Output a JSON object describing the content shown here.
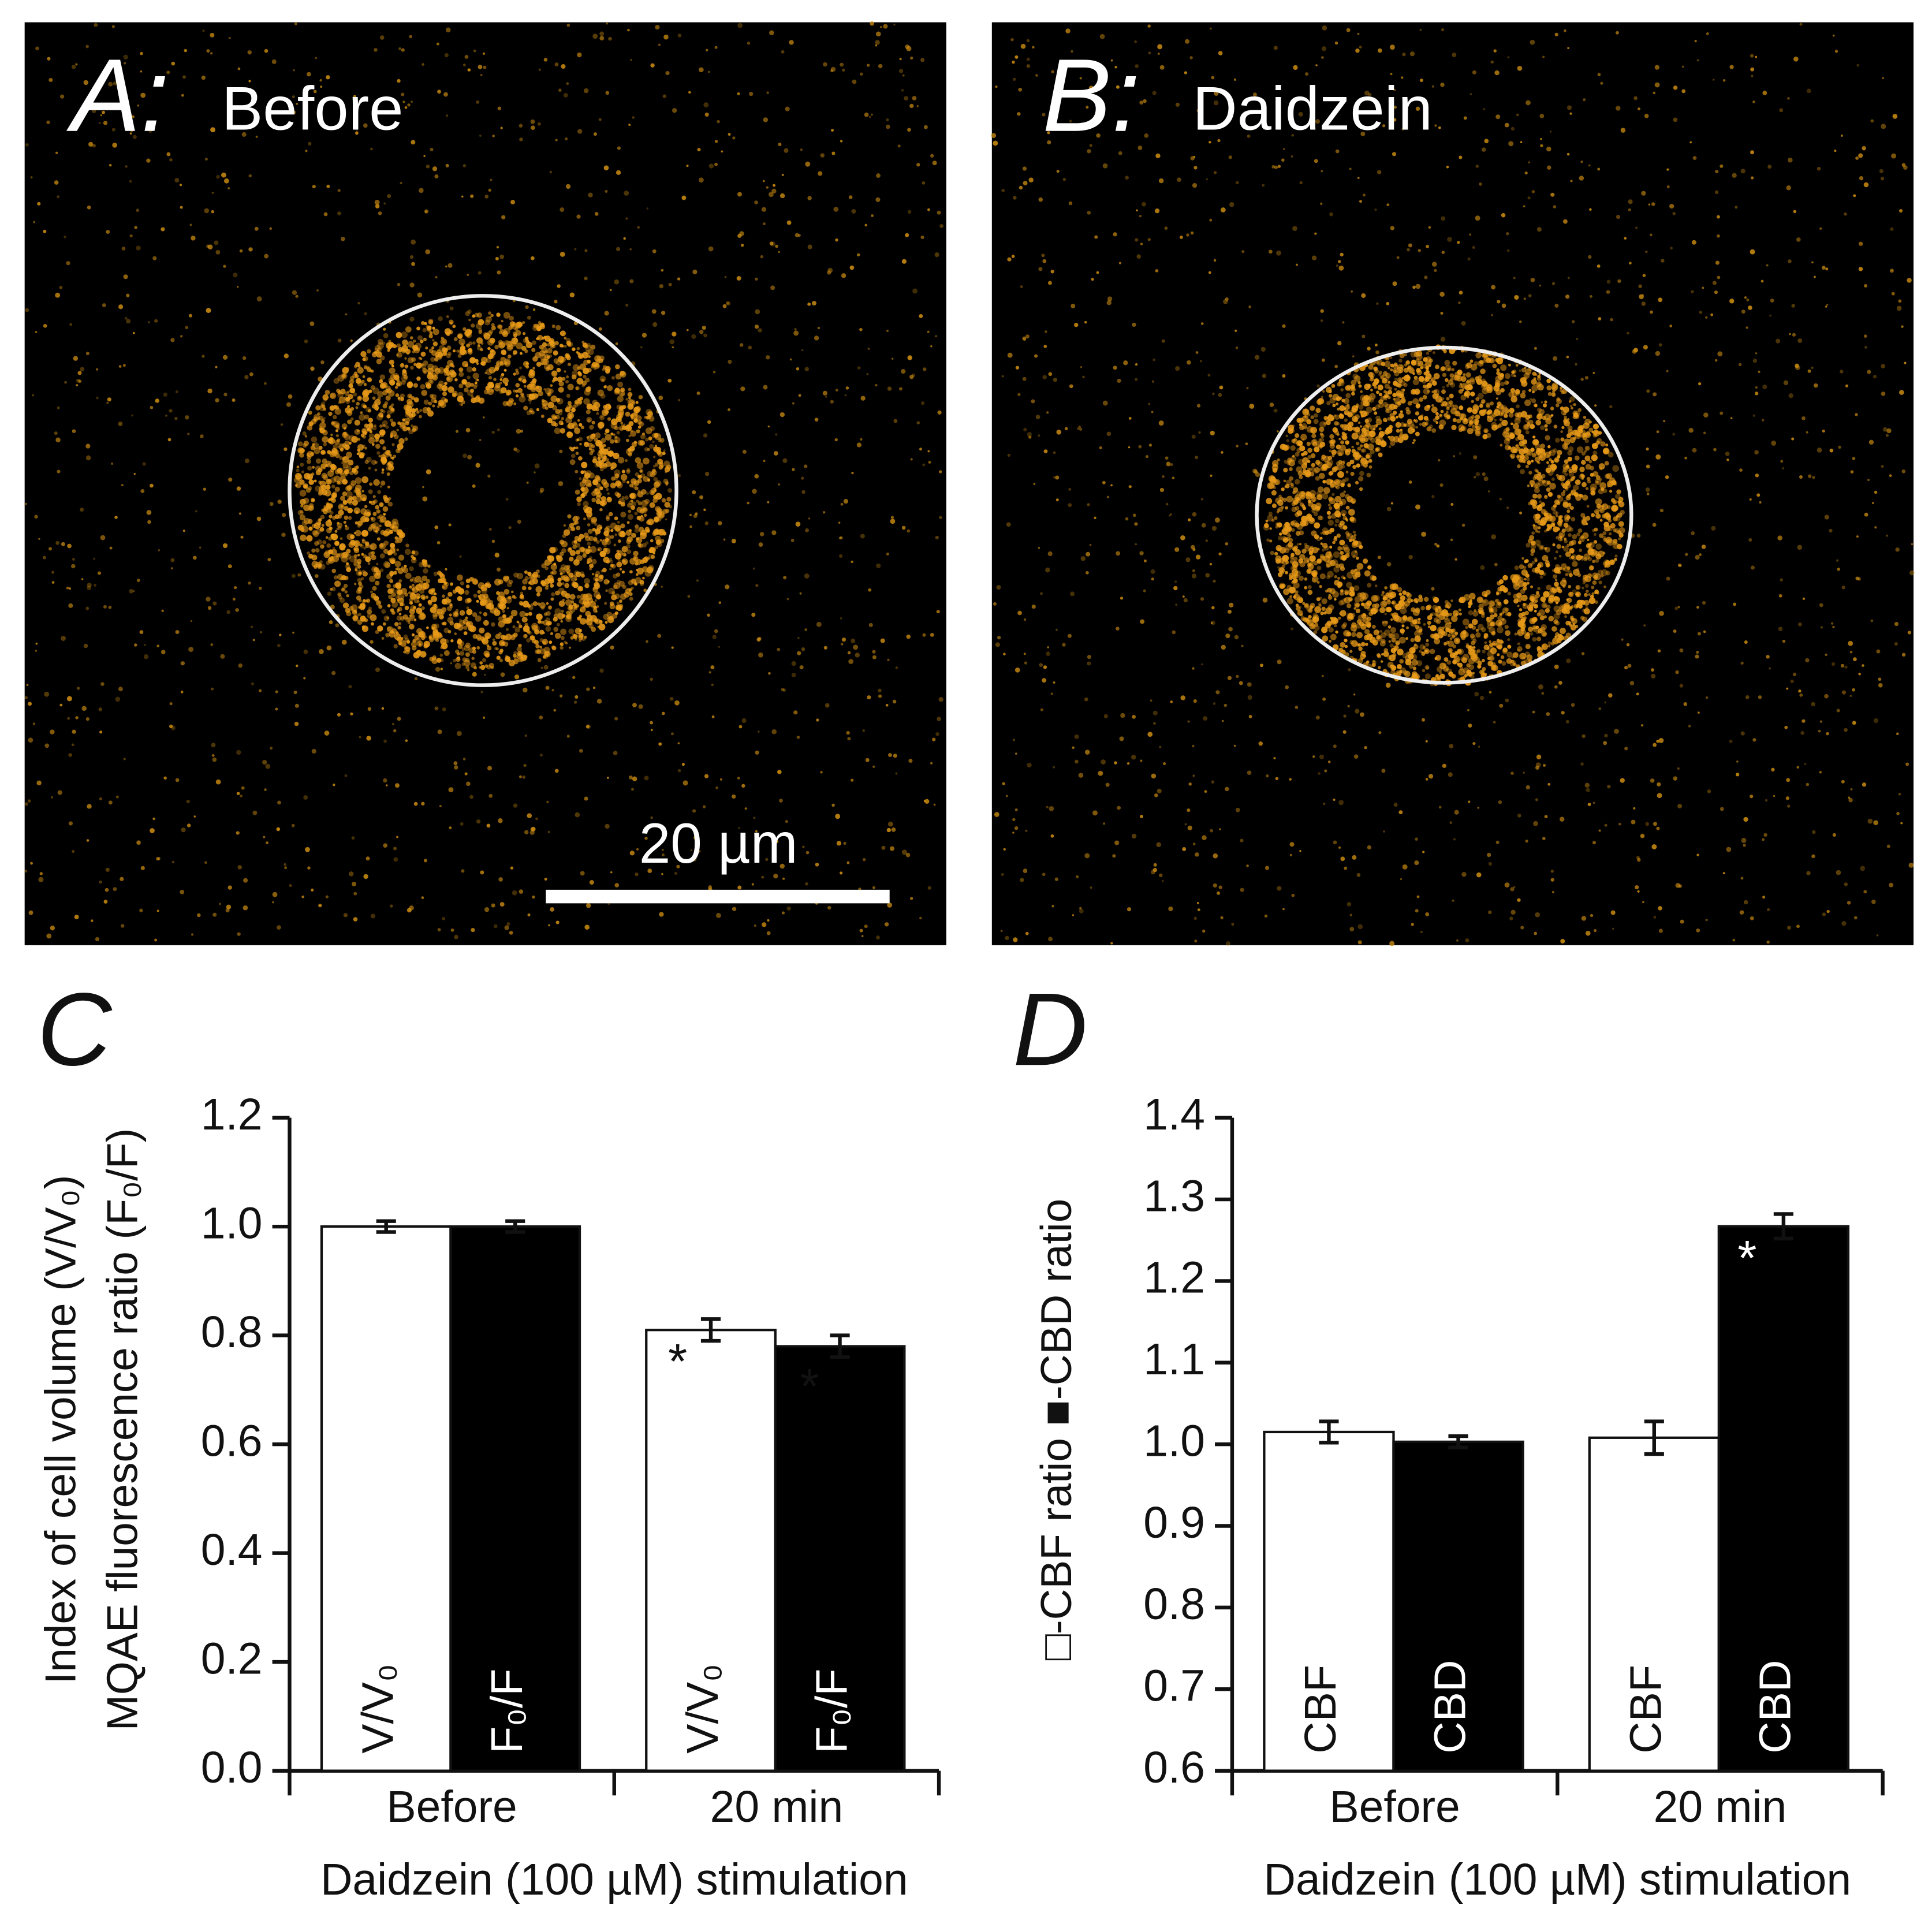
{
  "panels": [
    {
      "label": "A:",
      "title": "Before",
      "scale_bar": "20 µm"
    },
    {
      "label": "B:",
      "title": "Daidzein"
    }
  ],
  "chart_data": [
    {
      "type": "bar",
      "panel": "C",
      "y_label": [
        "Index of cell volume (V/V₀)",
        "MQAE fluorescence ratio (F₀/F)"
      ],
      "x_label": "Daidzein (100 µM)  stimulation",
      "categories": [
        "Before",
        "20 min"
      ],
      "series": [
        {
          "name": "V/V₀",
          "color": "#ffffff",
          "values": [
            1.0,
            0.81
          ],
          "errors": [
            0.01,
            0.02
          ]
        },
        {
          "name": "F₀/F",
          "color": "#000000",
          "values": [
            1.0,
            0.78
          ],
          "errors": [
            0.01,
            0.02
          ]
        }
      ],
      "annotations": [
        "*",
        "*"
      ],
      "ylim": [
        0,
        1.2
      ],
      "yticks": [
        {
          "value": 0,
          "label": "0.0"
        },
        0.2,
        0.4,
        0.6,
        0.8,
        {
          "value": 1,
          "label": "1.0"
        },
        1.2
      ]
    },
    {
      "type": "bar",
      "panel": "D",
      "y_label": "□-CBF ratio ■-CBD ratio",
      "x_label": "Daidzein (100 µM) stimulation",
      "categories": [
        "Before",
        "20 min"
      ],
      "series": [
        {
          "name": "CBF",
          "color": "#ffffff",
          "values": [
            1.015,
            1.008
          ],
          "errors": [
            0.013,
            0.02
          ]
        },
        {
          "name": "CBD",
          "color": "#000000",
          "values": [
            1.003,
            1.267
          ],
          "errors": [
            0.007,
            0.015
          ]
        }
      ],
      "annotations": [
        "*"
      ],
      "ylim": [
        0.6,
        1.4
      ],
      "yticks": [
        0.6,
        0.7,
        0.8,
        0.9,
        {
          "value": 1,
          "label": "1.0"
        },
        1.1,
        1.2,
        1.3,
        1.4
      ]
    }
  ]
}
